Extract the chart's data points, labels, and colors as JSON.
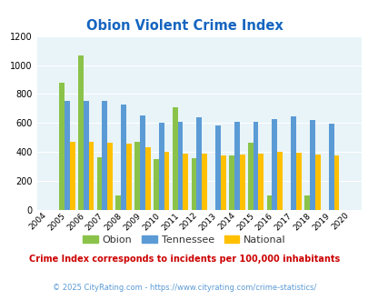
{
  "title": "Obion Violent Crime Index",
  "years": [
    2004,
    2005,
    2006,
    2007,
    2008,
    2009,
    2010,
    2011,
    2012,
    2013,
    2014,
    2015,
    2016,
    2017,
    2018,
    2019,
    2020
  ],
  "obion": [
    0,
    880,
    1065,
    365,
    100,
    470,
    350,
    710,
    355,
    0,
    375,
    465,
    100,
    0,
    100,
    0,
    0
  ],
  "tennessee": [
    0,
    755,
    755,
    755,
    730,
    655,
    605,
    610,
    640,
    585,
    610,
    610,
    630,
    645,
    620,
    595,
    0
  ],
  "national": [
    0,
    470,
    470,
    465,
    455,
    430,
    400,
    390,
    390,
    375,
    380,
    390,
    400,
    395,
    380,
    375,
    0
  ],
  "obion_color": "#8bc34a",
  "tennessee_color": "#5b9bd5",
  "national_color": "#ffc000",
  "bg_color": "#e8f4f8",
  "ylim": [
    0,
    1200
  ],
  "yticks": [
    0,
    200,
    400,
    600,
    800,
    1000,
    1200
  ],
  "legend_labels": [
    "Obion",
    "Tennessee",
    "National"
  ],
  "subtitle": "Crime Index corresponds to incidents per 100,000 inhabitants",
  "footer": "© 2025 CityRating.com - https://www.cityrating.com/crime-statistics/",
  "title_color": "#1565c0",
  "subtitle_color": "#cc0000",
  "footer_color": "#5b9bd5"
}
